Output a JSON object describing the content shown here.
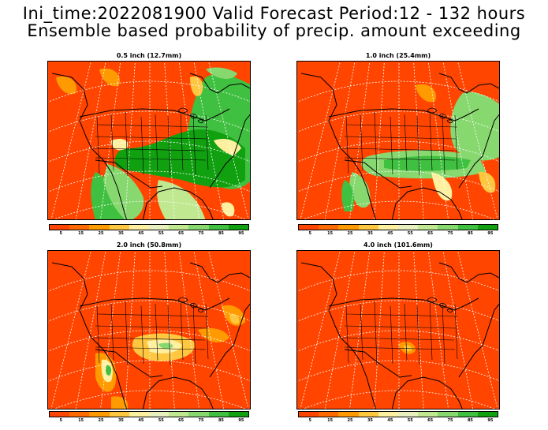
{
  "title": {
    "line1": "Ini_time:2022081900   Valid Forecast Period:12 - 132 hours",
    "line2": "Ensemble based probability of precip. amount exceeding"
  },
  "panels": [
    {
      "title": "0.5 inch (12.7mm)"
    },
    {
      "title": "1.0 inch (25.4mm)"
    },
    {
      "title": "2.0 inch (50.8mm)"
    },
    {
      "title": "4.0 inch (101.6mm)"
    }
  ],
  "colorbar": {
    "ticks": [
      "5",
      "15",
      "25",
      "35",
      "45",
      "55",
      "65",
      "75",
      "85",
      "95"
    ],
    "colors": [
      "#ff4500",
      "#ff6a00",
      "#ff9a00",
      "#ffc640",
      "#fff0a0",
      "#e8f0c0",
      "#c0e890",
      "#88d870",
      "#40c040",
      "#10a010"
    ]
  }
}
